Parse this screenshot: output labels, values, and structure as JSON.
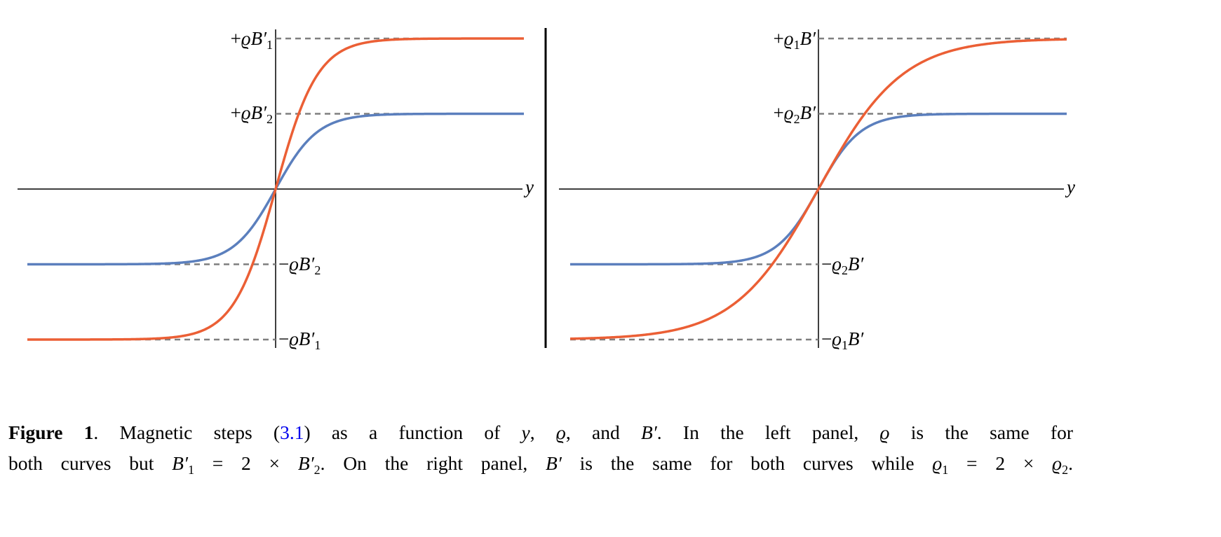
{
  "figure": {
    "left_labels": {
      "pos1": {
        "sign": "+",
        "sym": "ϱB′",
        "sub": "1"
      },
      "pos2": {
        "sign": "+",
        "sym": "ϱB′",
        "sub": "2"
      },
      "neg2": {
        "sign": "−",
        "sym": "ϱB′",
        "sub": "2"
      },
      "neg1": {
        "sign": "−",
        "sym": "ϱB′",
        "sub": "1"
      },
      "axis": "y"
    },
    "right_labels": {
      "pos1": {
        "sign": "+",
        "sym1": "ϱ",
        "sub": "1",
        "sym2": "B′"
      },
      "pos2": {
        "sign": "+",
        "sym1": "ϱ",
        "sub": "2",
        "sym2": "B′"
      },
      "neg2": {
        "sign": "−",
        "sym1": "ϱ",
        "sub": "2",
        "sym2": "B′"
      },
      "neg1": {
        "sign": "−",
        "sym1": "ϱ",
        "sub": "1",
        "sym2": "B′"
      },
      "axis": "y"
    }
  },
  "caption": {
    "label": "Figure 1",
    "t1": ". Magnetic steps (",
    "ref": "3.1",
    "t2": ") as a function of ",
    "y": "y",
    "t3": ", ",
    "rho": "ϱ",
    "t4": ", and ",
    "B": "B′",
    "t5": ". In the left panel, ",
    "rho2": "ϱ",
    "t6": " is the same for",
    "t7": "both curves but ",
    "B1": "B′",
    "s1": "1",
    "t8": " = 2 × ",
    "B2": "B′",
    "s2": "2",
    "t9": ". On the right panel, ",
    "B3": "B′",
    "t10": " is the same for both curves while ",
    "r1": "ϱ",
    "rs1": "1",
    "t11": " = 2 × ",
    "r2": "ϱ",
    "rs2": "2",
    "t12": "."
  },
  "chart_data": [
    {
      "type": "line",
      "panel": "left",
      "function": "amplitude * tanh(y / width)",
      "xlabel": "y",
      "xlim": [
        -5.9,
        5.9
      ],
      "ylim": [
        -2,
        2
      ],
      "series": [
        {
          "name": "curve 1 (B'1)",
          "color": "#eb5f35",
          "amplitude": 2,
          "width": 1
        },
        {
          "name": "curve 2 (B'2)",
          "color": "#5b7fbd",
          "amplitude": 1,
          "width": 1
        }
      ],
      "reference_lines": [
        2,
        1,
        -1,
        -2
      ]
    },
    {
      "type": "line",
      "panel": "right",
      "function": "amplitude * tanh(y / width)",
      "xlabel": "y",
      "xlim": [
        -5.9,
        5.9
      ],
      "ylim": [
        -2,
        2
      ],
      "series": [
        {
          "name": "curve 1 (rho1)",
          "color": "#eb5f35",
          "amplitude": 2,
          "width": 2
        },
        {
          "name": "curve 2 (rho2)",
          "color": "#5b7fbd",
          "amplitude": 1,
          "width": 1
        }
      ],
      "reference_lines": [
        2,
        1,
        -1,
        -2
      ]
    }
  ]
}
